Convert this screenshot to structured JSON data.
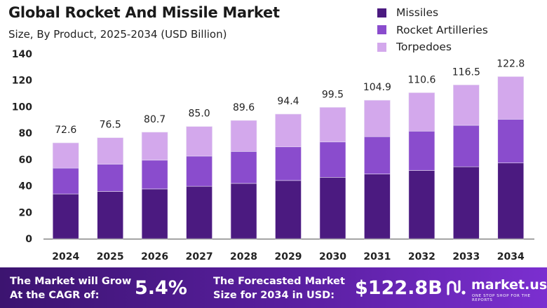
{
  "chart_data": {
    "type": "bar",
    "stacked": true,
    "title": "Global Rocket And Missile Market",
    "subtitle": "Size, By Product, 2025-2034 (USD Billion)",
    "categories": [
      "2024",
      "2025",
      "2026",
      "2027",
      "2028",
      "2029",
      "2030",
      "2031",
      "2032",
      "2033",
      "2034"
    ],
    "series": [
      {
        "name": "Missiles",
        "color": "#4b1a80",
        "values": [
          33.9,
          35.8,
          37.7,
          39.7,
          41.9,
          44.1,
          46.5,
          49.0,
          51.7,
          54.5,
          57.4
        ]
      },
      {
        "name": "Rocket Artilleries",
        "color": "#8a4ccd",
        "values": [
          19.6,
          20.7,
          21.8,
          22.9,
          24.2,
          25.5,
          26.8,
          28.3,
          29.8,
          31.4,
          33.1
        ]
      },
      {
        "name": "Torpedoes",
        "color": "#d3a8ec",
        "values": [
          19.1,
          20.0,
          21.2,
          22.4,
          23.5,
          24.8,
          26.2,
          27.6,
          29.1,
          30.6,
          32.3
        ]
      }
    ],
    "totals": [
      "72.6",
      "76.5",
      "80.7",
      "85.0",
      "89.6",
      "94.4",
      "99.5",
      "104.9",
      "110.6",
      "116.5",
      "122.8"
    ],
    "y_ticks": [
      "0",
      "20",
      "40",
      "60",
      "80",
      "100",
      "120",
      "140"
    ],
    "ylim": [
      0,
      140
    ],
    "legend_position": "top-right",
    "grid": false
  },
  "footer": {
    "cagr_label_line1": "The Market will Grow",
    "cagr_label_line2": "At the CAGR of:",
    "cagr_value": "5.4%",
    "forecast_label_line1": "The Forecasted Market",
    "forecast_label_line2": "Size for 2034 in USD:",
    "forecast_value": "$122.8B",
    "brand_name": "market.us",
    "brand_tagline": "ONE STOP SHOP FOR THE REPORTS"
  },
  "colors": {
    "missiles": "#4b1a80",
    "rocket_artilleries": "#8a4ccd",
    "torpedoes": "#d3a8ec",
    "footer_start": "#3c1470",
    "footer_end": "#7b2fd0"
  }
}
